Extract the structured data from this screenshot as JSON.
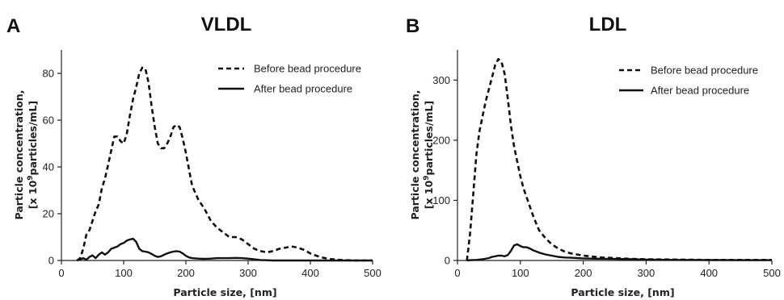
{
  "chart_data": [
    {
      "type": "line",
      "panel_letter": "A",
      "title": "VLDL",
      "xlabel": "Particle size, [nm]",
      "ylabel_line1": "Particle concentration,",
      "ylabel_line2_prefix": "[x 10",
      "ylabel_exponent": "9",
      "ylabel_line2_suffix": "particles/mL]",
      "xlim": [
        0,
        500
      ],
      "ylim": [
        0,
        90
      ],
      "x_ticks": [
        0,
        100,
        200,
        300,
        400,
        500
      ],
      "y_ticks": [
        0,
        20,
        40,
        60,
        80
      ],
      "legend_position": "top-right",
      "series": [
        {
          "name": "Before bead procedure",
          "style": "dashed",
          "color": "#111111",
          "x": [
            25,
            30,
            35,
            40,
            45,
            50,
            55,
            60,
            65,
            70,
            75,
            80,
            85,
            90,
            95,
            100,
            105,
            110,
            115,
            120,
            125,
            130,
            135,
            140,
            145,
            150,
            155,
            160,
            165,
            170,
            175,
            180,
            185,
            190,
            195,
            200,
            205,
            210,
            220,
            230,
            240,
            250,
            260,
            270,
            280,
            290,
            300,
            310,
            320,
            330,
            340,
            350,
            360,
            370,
            380,
            390,
            400,
            410,
            420,
            430,
            440,
            450,
            460,
            470,
            480,
            490,
            500
          ],
          "y": [
            0,
            1,
            5,
            11,
            13,
            17,
            21,
            24,
            31,
            35,
            41,
            47,
            53,
            53,
            51,
            50,
            54,
            62,
            69,
            74,
            80,
            82.5,
            82,
            76,
            66,
            57,
            50,
            48,
            48,
            50,
            53,
            57,
            58,
            57,
            52,
            46,
            39,
            32,
            26,
            22,
            17,
            14,
            12,
            10,
            10,
            9,
            7,
            5,
            4,
            3.5,
            4,
            5,
            5.5,
            6,
            5.5,
            4.5,
            3,
            2,
            1.2,
            0.7,
            0.4,
            0.2,
            0.1,
            0,
            0,
            0,
            0
          ]
        },
        {
          "name": "After bead procedure",
          "style": "solid",
          "color": "#111111",
          "x": [
            25,
            30,
            35,
            40,
            45,
            50,
            55,
            60,
            65,
            70,
            75,
            80,
            85,
            90,
            95,
            100,
            105,
            110,
            115,
            120,
            125,
            130,
            135,
            140,
            145,
            150,
            155,
            160,
            165,
            170,
            175,
            180,
            185,
            190,
            195,
            200,
            205,
            210,
            220,
            230,
            240,
            250,
            260,
            270,
            280,
            290,
            300,
            310,
            320,
            330,
            340,
            350,
            400,
            450,
            500
          ],
          "y": [
            0,
            0.5,
            1,
            0.3,
            1.5,
            2.2,
            1,
            2.5,
            3.5,
            2.5,
            3.5,
            5,
            5.5,
            6,
            7,
            7.5,
            8.5,
            9,
            9.3,
            8,
            5,
            4,
            3.8,
            3.5,
            2.8,
            2,
            1.5,
            1.8,
            2.5,
            3,
            3.5,
            3.8,
            4,
            3.8,
            3,
            2,
            1.3,
            1,
            0.8,
            0.7,
            0.8,
            1,
            1,
            1,
            1.1,
            1,
            0.8,
            0.5,
            0.2,
            0.1,
            0,
            0,
            0,
            0,
            0
          ]
        }
      ]
    },
    {
      "type": "line",
      "panel_letter": "B",
      "title": "LDL",
      "xlabel": "Particle size, [nm]",
      "ylabel_line1": "Particle concentration,",
      "ylabel_line2_prefix": "[x 10",
      "ylabel_exponent": "9",
      "ylabel_line2_suffix": "particles/mL]",
      "xlim": [
        0,
        500
      ],
      "ylim": [
        0,
        350
      ],
      "x_ticks": [
        0,
        100,
        200,
        300,
        400,
        500
      ],
      "y_ticks": [
        0,
        100,
        200,
        300
      ],
      "legend_position": "top-right",
      "series": [
        {
          "name": "Before bead procedure",
          "style": "dashed",
          "color": "#111111",
          "x": [
            15,
            20,
            25,
            30,
            35,
            40,
            45,
            50,
            55,
            60,
            65,
            70,
            75,
            80,
            85,
            90,
            95,
            100,
            105,
            110,
            115,
            120,
            125,
            130,
            140,
            150,
            160,
            170,
            180,
            190,
            200,
            210,
            220,
            230,
            240,
            250,
            260,
            270,
            280,
            300,
            350,
            400,
            450,
            500
          ],
          "y": [
            0,
            45,
            110,
            175,
            215,
            240,
            265,
            285,
            305,
            325,
            335,
            330,
            310,
            270,
            225,
            190,
            165,
            140,
            120,
            105,
            90,
            75,
            62,
            50,
            37,
            27,
            20,
            15,
            12,
            10,
            8,
            7,
            6,
            5,
            4.5,
            4,
            3.5,
            3,
            2.5,
            2,
            1.5,
            1,
            1,
            1
          ]
        },
        {
          "name": "After bead procedure",
          "style": "solid",
          "color": "#111111",
          "x": [
            15,
            20,
            30,
            40,
            50,
            55,
            60,
            65,
            70,
            75,
            80,
            85,
            90,
            95,
            100,
            105,
            110,
            115,
            120,
            125,
            130,
            140,
            150,
            160,
            170,
            180,
            190,
            200,
            220,
            250,
            280,
            300,
            350,
            400,
            450,
            500
          ],
          "y": [
            0,
            0.5,
            1,
            2,
            4,
            6,
            7,
            8,
            8,
            7,
            9,
            16,
            25,
            27,
            24,
            22,
            22,
            20,
            17,
            15,
            13,
            10,
            8,
            6,
            5,
            4.5,
            4,
            3.5,
            3,
            2.5,
            2,
            1.5,
            1,
            0.8,
            0.5,
            0.5
          ]
        }
      ]
    }
  ]
}
